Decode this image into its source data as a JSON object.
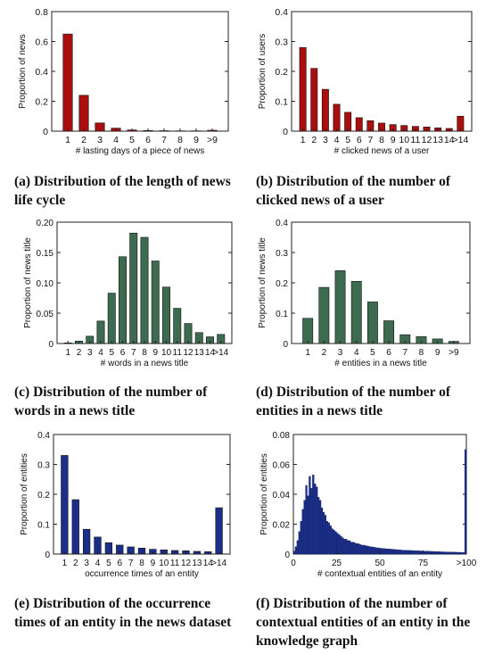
{
  "chart_data": [
    {
      "type": "bar",
      "caption_label": "(a)",
      "caption": "Distribution of the length of news life cycle",
      "xlabel": "# lasting days of a piece of news",
      "ylabel": "Proportion of news",
      "categories": [
        "1",
        "2",
        "3",
        "4",
        "5",
        "6",
        "7",
        "8",
        "9",
        ">9"
      ],
      "values": [
        0.65,
        0.24,
        0.055,
        0.02,
        0.008,
        0.004,
        0.003,
        0.002,
        0.002,
        0.006
      ],
      "ylim": [
        0,
        0.8
      ],
      "yticks": [
        "0",
        "0.2",
        "0.4",
        "0.6",
        "0.8"
      ],
      "color": "#aa0e0e"
    },
    {
      "type": "bar",
      "caption_label": "(b)",
      "caption": "Distribution of the number of clicked news of a user",
      "xlabel": "# clicked news of a user",
      "ylabel": "Proportion of users",
      "categories": [
        "1",
        "2",
        "3",
        "4",
        "5",
        "6",
        "7",
        "8",
        "9",
        "10",
        "11",
        "12",
        "13",
        "14",
        ">14"
      ],
      "values": [
        0.28,
        0.21,
        0.14,
        0.09,
        0.063,
        0.045,
        0.035,
        0.027,
        0.022,
        0.019,
        0.016,
        0.014,
        0.011,
        0.009,
        0.05
      ],
      "ylim": [
        0,
        0.4
      ],
      "yticks": [
        "0",
        "0.1",
        "0.2",
        "0.3",
        "0.4"
      ],
      "color": "#aa0e0e"
    },
    {
      "type": "bar",
      "caption_label": "(c)",
      "caption": "Distribution of the number of words in a news title",
      "xlabel": "# words in a news title",
      "ylabel": "Proportion of news title",
      "categories": [
        "1",
        "2",
        "3",
        "4",
        "5",
        "6",
        "7",
        "8",
        "9",
        "10",
        "11",
        "12",
        "13",
        "14",
        ">14"
      ],
      "values": [
        0.001,
        0.004,
        0.012,
        0.037,
        0.083,
        0.143,
        0.182,
        0.175,
        0.136,
        0.093,
        0.058,
        0.033,
        0.018,
        0.011,
        0.015
      ],
      "ylim": [
        0,
        0.2
      ],
      "yticks": [
        "0",
        "0.05",
        "0.10",
        "0.15",
        "0.20"
      ],
      "color": "#3d6b4f"
    },
    {
      "type": "bar",
      "caption_label": "(d)",
      "caption": "Distribution of the number of entities in a news title",
      "xlabel": "# entities in a news title",
      "ylabel": "Proportion of news title",
      "categories": [
        "1",
        "2",
        "3",
        "4",
        "5",
        "6",
        "7",
        "8",
        "9",
        ">9"
      ],
      "values": [
        0.083,
        0.185,
        0.24,
        0.205,
        0.137,
        0.075,
        0.029,
        0.023,
        0.015,
        0.007
      ],
      "ylim": [
        0,
        0.4
      ],
      "yticks": [
        "0",
        "0.1",
        "0.2",
        "0.3",
        "0.4"
      ],
      "color": "#3d6b4f"
    },
    {
      "type": "bar",
      "caption_label": "(e)",
      "caption": "Distribution of the occurrence times of an entity in the news dataset",
      "xlabel": "occurrence times of an entity",
      "ylabel": "Proportion of entities",
      "categories": [
        "1",
        "2",
        "3",
        "4",
        "5",
        "6",
        "7",
        "8",
        "9",
        "10",
        "11",
        "12",
        "13",
        "14",
        ">14"
      ],
      "values": [
        0.33,
        0.182,
        0.083,
        0.057,
        0.038,
        0.03,
        0.024,
        0.02,
        0.016,
        0.014,
        0.012,
        0.011,
        0.009,
        0.008,
        0.155
      ],
      "ylim": [
        0,
        0.4
      ],
      "yticks": [
        "0",
        "0.1",
        "0.2",
        "0.3",
        "0.4"
      ],
      "color": "#1b2f8a"
    },
    {
      "type": "bar",
      "caption_label": "(f)",
      "caption": "Distribution of the number of contextual entities of an entity in the knowledge graph",
      "xlabel": "# contextual entities of an entity",
      "ylabel": "Proportion of entities",
      "xticks": [
        "0",
        "25",
        "50",
        "75",
        ">100"
      ],
      "xlim": [
        0,
        100
      ],
      "x": [
        1,
        2,
        3,
        4,
        5,
        6,
        7,
        8,
        9,
        10,
        11,
        12,
        13,
        14,
        15,
        16,
        17,
        18,
        19,
        20,
        21,
        22,
        23,
        24,
        25,
        26,
        27,
        28,
        29,
        30,
        31,
        32,
        33,
        34,
        35,
        36,
        37,
        38,
        39,
        40,
        41,
        42,
        43,
        44,
        45,
        46,
        47,
        48,
        49,
        50,
        51,
        52,
        53,
        54,
        55,
        56,
        57,
        58,
        59,
        60,
        61,
        62,
        63,
        64,
        65,
        66,
        67,
        68,
        69,
        70,
        71,
        72,
        73,
        74,
        75,
        76,
        77,
        78,
        79,
        80,
        81,
        82,
        83,
        84,
        85,
        86,
        87,
        88,
        89,
        90,
        91,
        92,
        93,
        94,
        95,
        96,
        97,
        98,
        99,
        100
      ],
      "values": [
        0.002,
        0.005,
        0.009,
        0.015,
        0.022,
        0.03,
        0.036,
        0.046,
        0.039,
        0.052,
        0.044,
        0.053,
        0.047,
        0.045,
        0.038,
        0.036,
        0.031,
        0.028,
        0.026,
        0.022,
        0.021,
        0.019,
        0.017,
        0.016,
        0.015,
        0.014,
        0.013,
        0.012,
        0.011,
        0.01,
        0.01,
        0.009,
        0.009,
        0.008,
        0.008,
        0.0075,
        0.007,
        0.007,
        0.0065,
        0.006,
        0.006,
        0.0057,
        0.0055,
        0.0052,
        0.005,
        0.0048,
        0.0046,
        0.0044,
        0.0042,
        0.004,
        0.0039,
        0.0038,
        0.0037,
        0.0036,
        0.0035,
        0.0034,
        0.0033,
        0.0032,
        0.0031,
        0.003,
        0.0029,
        0.0028,
        0.0027,
        0.0026,
        0.0026,
        0.0025,
        0.0025,
        0.0024,
        0.0024,
        0.0023,
        0.0023,
        0.0022,
        0.0022,
        0.0021,
        0.0021,
        0.002,
        0.002,
        0.0019,
        0.0019,
        0.0018,
        0.0018,
        0.0017,
        0.0017,
        0.0016,
        0.0016,
        0.0015,
        0.0015,
        0.0015,
        0.0014,
        0.0014,
        0.0014,
        0.0013,
        0.0013,
        0.0013,
        0.0012,
        0.0012,
        0.0012,
        0.0011,
        0.0011,
        0.07
      ],
      "ylim": [
        0,
        0.08
      ],
      "yticks": [
        "0",
        "0.02",
        "0.04",
        "0.06",
        "0.08"
      ],
      "color": "#1b2f8a"
    }
  ]
}
